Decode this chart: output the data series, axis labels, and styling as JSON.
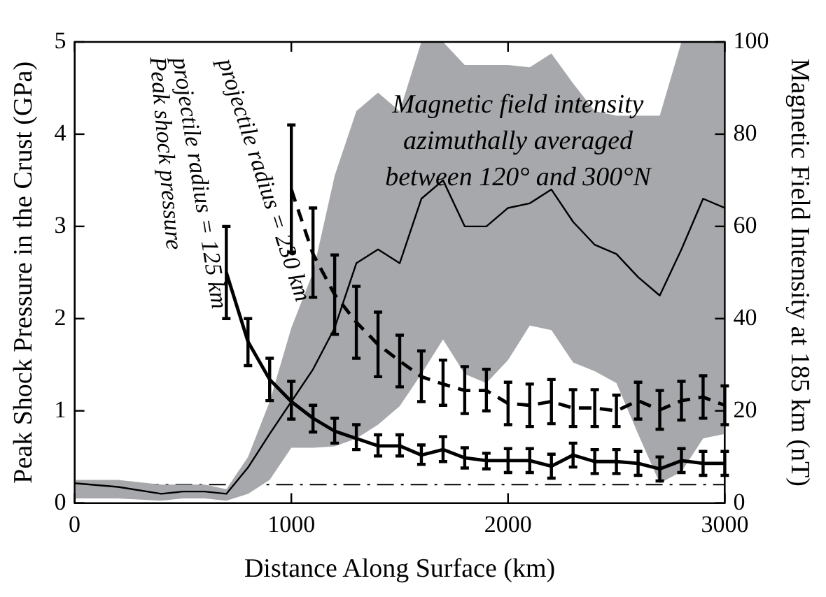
{
  "chart_data": {
    "type": "line",
    "xlabel": "Distance Along Surface (km)",
    "ylabel": "Peak Shock Pressure in the Crust (GPa)",
    "y2label": "Magnetic Field Intensity at 185 km (nT)",
    "xlim": [
      0,
      3000
    ],
    "xticks": [
      0,
      1000,
      2000,
      3000
    ],
    "ylim": [
      0,
      5
    ],
    "yticks": [
      0,
      1,
      2,
      3,
      4,
      5
    ],
    "y2lim": [
      0,
      100
    ],
    "y2ticks": [
      0,
      20,
      40,
      60,
      80,
      100
    ],
    "grid": false,
    "legend": false,
    "marker": "none",
    "series": [
      {
        "axis": "y2",
        "color": "#000000",
        "line_style": "solid",
        "x": [
          0,
          200,
          400,
          500,
          600,
          700,
          800,
          900,
          1000,
          1100,
          1200,
          1300,
          1400,
          1500,
          1600,
          1700,
          1800,
          1900,
          2000,
          2100,
          2200,
          2300,
          2400,
          2500,
          2600,
          2700,
          2800,
          2900,
          3000
        ],
        "values": [
          4.3,
          3.5,
          2,
          2.5,
          2.5,
          2,
          7.7,
          15,
          22,
          29,
          38,
          52,
          55,
          52,
          66,
          70,
          60,
          60,
          64,
          65,
          68,
          61,
          56,
          54,
          49,
          45,
          55,
          66,
          64
        ],
        "lower": [
          1,
          1,
          0.5,
          1,
          1,
          0.5,
          2,
          5,
          12,
          12,
          12.3,
          14,
          17,
          21,
          28,
          35.5,
          28,
          26,
          31,
          38.5,
          37.5,
          30.5,
          28.6,
          26,
          15,
          4.3,
          6.8,
          14,
          15
        ],
        "upper": [
          5,
          5,
          4,
          4,
          4,
          3,
          10,
          22,
          38,
          50,
          71,
          85,
          89,
          85,
          100,
          100,
          95,
          95,
          95,
          94.5,
          97.5,
          91,
          85,
          84,
          84,
          84,
          100,
          100,
          100
        ]
      },
      {
        "color": "#000000",
        "line_style": "solid",
        "x": [
          700,
          800,
          900,
          1000,
          1100,
          1200,
          1300,
          1400,
          1500,
          1600,
          1700,
          1800,
          1900,
          2000,
          2100,
          2200,
          2300,
          2400,
          2500,
          2600,
          2700,
          2800,
          2900,
          3000
        ],
        "values": [
          2.5,
          1.75,
          1.34,
          1.1,
          0.92,
          0.78,
          0.7,
          0.62,
          0.62,
          0.52,
          0.58,
          0.49,
          0.46,
          0.46,
          0.46,
          0.4,
          0.52,
          0.45,
          0.45,
          0.43,
          0.37,
          0.46,
          0.43,
          0.43
        ],
        "errors": [
          [
            2.0,
            3.0
          ],
          [
            1.49,
            2.0
          ],
          [
            1.11,
            1.57
          ],
          [
            0.91,
            1.32
          ],
          [
            0.77,
            1.06
          ],
          [
            0.65,
            0.92
          ],
          [
            0.58,
            0.85
          ],
          [
            0.51,
            0.74
          ],
          [
            0.51,
            0.74
          ],
          [
            0.42,
            0.63
          ],
          [
            0.45,
            0.72
          ],
          [
            0.38,
            0.6
          ],
          [
            0.37,
            0.54
          ],
          0.13,
          0.13,
          0.13,
          0.13,
          0.13,
          0.13,
          0.13,
          0.13,
          0.13,
          0.13,
          0.13
        ]
      },
      {
        "color": "#000000",
        "line_style": "dashed",
        "x": [
          1000,
          1100,
          1200,
          1300,
          1400,
          1500,
          1600,
          1700,
          1800,
          1900,
          2000,
          2100,
          2200,
          2300,
          2400,
          2500,
          2600,
          2700,
          2800,
          2900,
          3000
        ],
        "values": [
          3.4,
          2.7,
          2.26,
          1.96,
          1.72,
          1.54,
          1.37,
          1.29,
          1.22,
          1.22,
          1.08,
          1.06,
          1.1,
          1.03,
          1.03,
          1.0,
          1.11,
          1.01,
          1.11,
          1.15,
          1.06
        ],
        "errors": [
          [
            2.72,
            4.1
          ],
          [
            2.23,
            3.2
          ],
          [
            1.83,
            2.69
          ],
          [
            1.57,
            2.35
          ],
          [
            1.37,
            2.07
          ],
          [
            1.26,
            1.82
          ],
          [
            1.1,
            1.65
          ],
          [
            1.06,
            1.55
          ],
          [
            0.97,
            1.48
          ],
          [
            1.0,
            1.45
          ],
          [
            0.85,
            1.31
          ],
          [
            0.83,
            1.29
          ],
          [
            0.86,
            1.34
          ],
          [
            0.83,
            1.23
          ],
          [
            0.83,
            1.23
          ],
          [
            0.83,
            1.17
          ],
          [
            0.91,
            1.31
          ],
          [
            0.8,
            1.22
          ],
          [
            0.9,
            1.32
          ],
          [
            0.92,
            1.38
          ],
          [
            0.85,
            1.27
          ]
        ]
      }
    ],
    "ref_lines": [
      {
        "axis": "y",
        "value": 0.2,
        "color": "#000000",
        "line_style": "dashdot"
      }
    ],
    "annotations": [
      "Peak shock pressure",
      "projectile radius = 125 km",
      "projectile radius = 230 km",
      "Magnetic field intensity\nazimuthally averaged\nbetween 120° and 300°N"
    ]
  }
}
